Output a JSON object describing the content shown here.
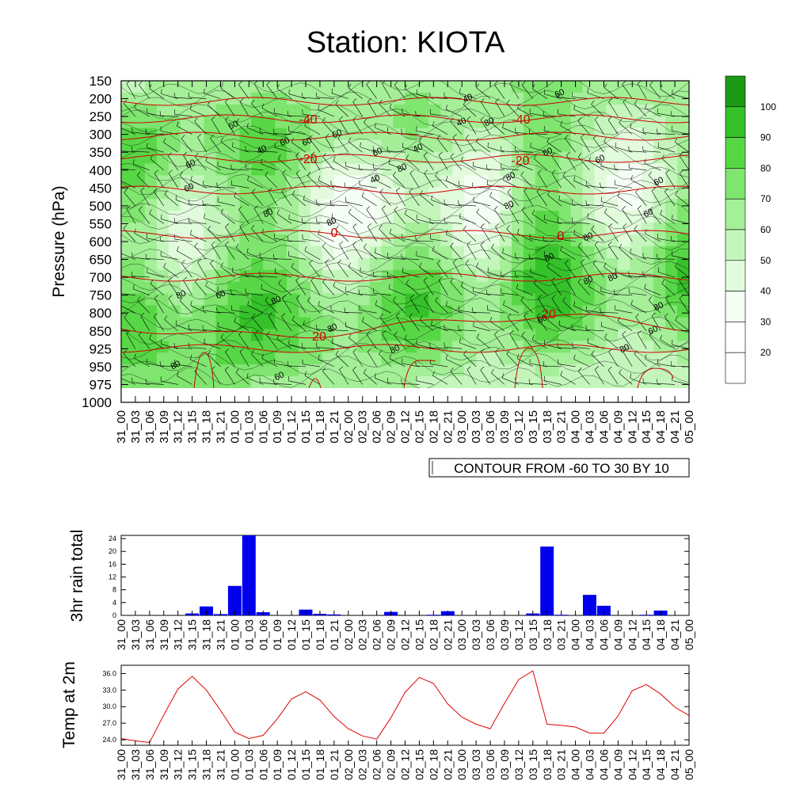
{
  "title": "Station: KIOTA",
  "colors": {
    "rh_fill": [
      "#ffffff",
      "#f5fef4",
      "#e1fbdc",
      "#c4f6bc",
      "#a4ef98",
      "#7fe56f",
      "#58d746",
      "#35c12a",
      "#1a9a14"
    ],
    "contour": "#000000",
    "temp_contour": "#d00000",
    "rain_bar": "#0000ee",
    "temp_line": "#e00000"
  },
  "time_labels": [
    "31_00",
    "31_03",
    "31_06",
    "31_09",
    "31_12",
    "31_15",
    "31_18",
    "31_21",
    "01_00",
    "01_03",
    "01_06",
    "01_09",
    "01_12",
    "01_15",
    "01_18",
    "01_21",
    "02_00",
    "02_03",
    "02_06",
    "02_09",
    "02_12",
    "02_15",
    "02_18",
    "02_21",
    "03_00",
    "03_03",
    "03_06",
    "03_09",
    "03_12",
    "03_15",
    "03_18",
    "03_21",
    "04_00",
    "04_03",
    "04_06",
    "04_09",
    "04_12",
    "04_15",
    "04_18",
    "04_21",
    "05_00"
  ],
  "chart_data": [
    {
      "type": "heatmap",
      "title": "Station: KIOTA",
      "ylabel": "Pressure (hPa)",
      "pressure_levels": [
        150,
        200,
        250,
        300,
        350,
        400,
        450,
        500,
        550,
        600,
        650,
        700,
        750,
        800,
        850,
        925,
        950,
        975,
        1000
      ],
      "legend_levels": [
        20,
        30,
        40,
        50,
        60,
        70,
        80,
        90,
        100
      ],
      "info_box": "CONTOUR FROM -60 TO 30 BY 10",
      "temperature_contours": [
        {
          "label": "-40",
          "pressure": 250
        },
        {
          "label": "-40",
          "pressure": 250
        },
        {
          "label": "-20",
          "pressure": 375
        },
        {
          "label": "-20",
          "pressure": 375
        },
        {
          "label": "0",
          "pressure": 580
        },
        {
          "label": "0",
          "pressure": 580
        },
        {
          "label": "20",
          "pressure": 830
        },
        {
          "label": "20",
          "pressure": 880
        }
      ],
      "rh_contour_labels": [
        "60",
        "40",
        "40",
        "60",
        "60",
        "80",
        "60",
        "40",
        "60",
        "60",
        "40",
        "60",
        "60",
        "80",
        "60",
        "80",
        "60",
        "40",
        "60",
        "80",
        "80",
        "60",
        "80",
        "80",
        "80",
        "80",
        "60",
        "80",
        "80",
        "80",
        "80",
        "60",
        "80",
        "60",
        "80",
        "80",
        "80",
        "60",
        "80"
      ]
    },
    {
      "type": "bar",
      "ylabel": "3hr rain total",
      "ylim": [
        0,
        25
      ],
      "yticks": [
        0,
        4,
        8,
        12,
        16,
        20,
        24
      ],
      "values": [
        0,
        0,
        0,
        0,
        0,
        0.6,
        2.8,
        0.4,
        9.2,
        25,
        1.0,
        0,
        0,
        1.8,
        0.5,
        0.3,
        0,
        0,
        0,
        1.1,
        0,
        0,
        0.2,
        1.3,
        0,
        0,
        0,
        0,
        0,
        0.6,
        21.5,
        0.2,
        0,
        6.4,
        3.0,
        0,
        0,
        0.2,
        1.5,
        0,
        0
      ]
    },
    {
      "type": "line",
      "ylabel": "Temp at 2m",
      "ylim": [
        23,
        37.5
      ],
      "yticks": [
        "24.0",
        "27.0",
        "30.0",
        "33.0",
        "36.0"
      ],
      "values": [
        24.2,
        23.8,
        23.5,
        28.5,
        33.2,
        35.5,
        33.0,
        29.3,
        25.4,
        24.2,
        24.8,
        27.8,
        31.4,
        32.7,
        31.2,
        28.2,
        26.0,
        24.7,
        24.1,
        28.0,
        32.6,
        35.3,
        34.2,
        30.5,
        28.1,
        26.8,
        26.0,
        30.6,
        34.9,
        36.5,
        26.8,
        26.6,
        26.3,
        25.2,
        25.2,
        28.3,
        32.9,
        34.0,
        32.3,
        29.9,
        28.4
      ]
    }
  ]
}
